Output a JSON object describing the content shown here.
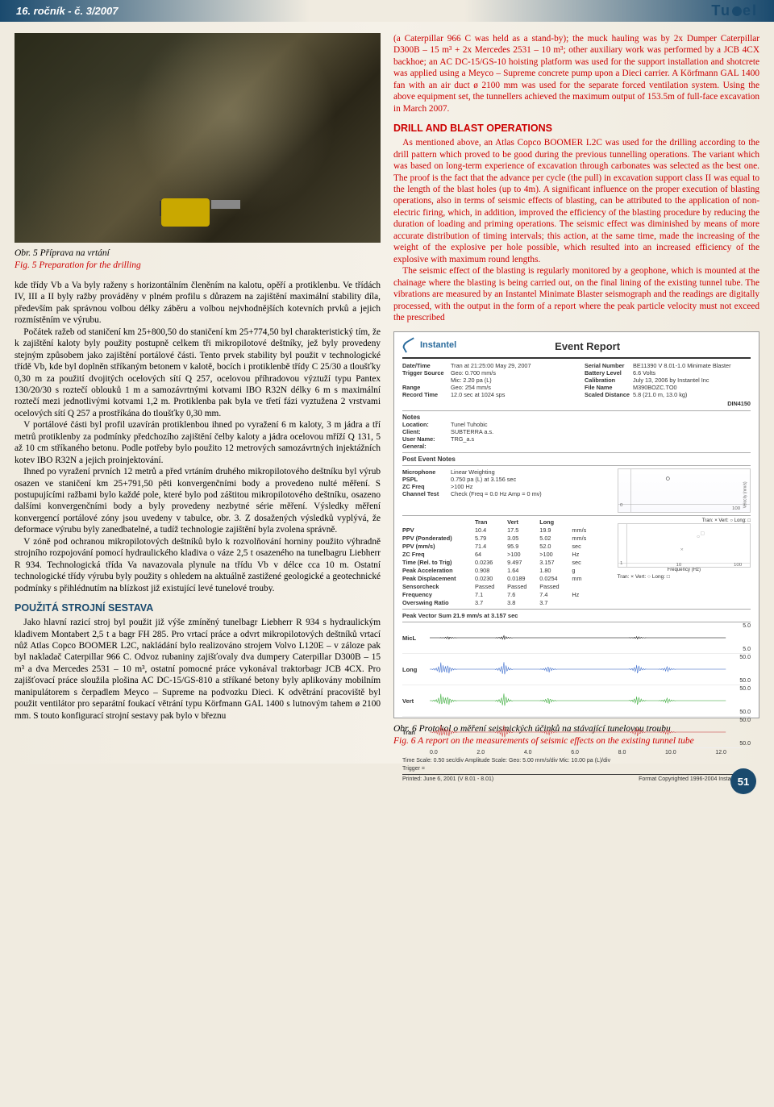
{
  "header": {
    "issue": "16. ročník - č. 3/2007",
    "journal": "Tunel"
  },
  "left": {
    "fig5": {
      "cz": "Obr. 5 Příprava na vrtání",
      "en": "Fig. 5 Preparation for the drilling"
    },
    "p1": "kde třídy Vb a Va byly raženy s horizontálním členěním na kalotu, opěří a protiklenbu. Ve třídách IV, III a II byly ražby prováděny v plném profilu s důrazem na zajištění maximální stability díla, především pak správnou volbou délky záběru a volbou nejvhodnějších kotevních prvků a jejich rozmístěním ve výrubu.",
    "p2": "Počátek ražeb od staničení km 25+800,50 do staničení km 25+774,50 byl charakteristický tím, že k zajištění kaloty byly použity postupně celkem tři mikropilotové deštníky, jež byly provedeny stejným způsobem jako zajištění portálové části. Tento prvek stability byl použit v technologické třídě Vb, kde byl doplněn stříkaným betonem v kalotě, bocích i protiklenbě třídy C 25/30 a tloušťky 0,30 m za použití dvojitých ocelových sítí Q 257, ocelovou příhradovou výztuží typu Pantex 130/20/30 s roztečí oblouků 1 m a samozávrtnými kotvami IBO R32N délky 6 m s maximální roztečí mezi jednotlivými kotvami 1,2 m. Protiklenba pak byla ve třetí fázi vyztužena 2 vrstvami ocelových sítí Q 257 a prostříkána do tloušťky 0,30 mm.",
    "p3": "V portálové části byl profil uzavírán protiklenbou ihned po vyražení 6 m kaloty, 3 m jádra a tří metrů protiklenby za podmínky předchozího zajištění čelby kaloty a jádra ocelovou mříží Q 131, 5 až 10 cm stříkaného betonu. Podle potřeby bylo použito 12 metrových samozávrtných injektážních kotev IBO R32N a jejich proinjektování.",
    "p4": "Ihned po vyražení prvních 12 metrů a před vrtáním druhého mikropilotového deštníku byl výrub osazen ve staničení km 25+791,50 pěti konvergenčními body a provedeno nulté měření. S postupujícími ražbami bylo každé pole, které bylo pod záštitou mikropilotového deštníku, osazeno dalšími konvergenčními body a byly provedeny nezbytné série měření. Výsledky měření konvergencí portálové zóny jsou uvedeny v tabulce, obr. 3. Z dosažených výsledků vyplývá, že deformace výrubu byly zanedbatelné, a tudíž technologie zajištění byla zvolena správně.",
    "p5": "V zóně pod ochranou mikropilotových deštníků bylo k rozvolňování horniny použito výhradně strojního rozpojování pomocí hydraulického kladiva o váze 2,5 t osazeného na tunelbagru Liebherr R 934. Technologická třída Va navazovala plynule na třídu Vb v délce cca 10 m. Ostatní technologické třídy výrubu byly použity s ohledem na aktuálně zastižené geologické a geotechnické podmínky s přihlédnutím na blízkost již existující levé tunelové trouby.",
    "section_equip": "POUŽITÁ STROJNÍ SESTAVA",
    "p6": "Jako hlavní razicí stroj byl použit již výše zmíněný tunelbagr Liebherr R 934 s hydraulickým kladivem Montabert 2,5 t a bagr FH 285. Pro vrtací práce a odvrt mikropilotových deštníků vrtací nůž Atlas Copco BOOMER L2C, nakládání bylo realizováno strojem Volvo L120E – v záloze pak byl nakladač Caterpillar 966 C. Odvoz rubaniny zajišťovaly dva dumpery Caterpillar D300B – 15 m³ a dva Mercedes 2531 – 10 m³, ostatní pomocné práce vykonával traktorbagr JCB 4CX. Pro zajišťovací práce sloužila plošina AC DC-15/GS-810 a stříkané betony byly aplikovány mobilním manipulátorem s čerpadlem Meyco – Supreme na podvozku Dieci. K odvětrání pracoviště byl použit ventilátor pro separátní foukací větrání typu Körfmann GAL 1400 s lutnovým tahem ø 2100 mm. S touto konfigurací strojní sestavy pak bylo v březnu"
  },
  "right": {
    "p1": "(a Caterpillar 966 C was held as a stand-by); the muck hauling was by 2x Dumper Caterpillar D300B – 15 m³ + 2x Mercedes 2531 – 10 m³; other auxiliary work was performed by a JCB 4CX backhoe; an AC DC-15/GS-10 hoisting platform was used for the support installation and shotcrete was applied using a Meyco – Supreme concrete pump upon a Dieci carrier. A Körfmann GAL 1400 fan with an air duct ø 2100 mm was used for the separate forced ventilation system. Using the above equipment set, the tunnellers achieved the maximum output of 153.5m of full-face excavation in March 2007.",
    "section_drill": "DRILL AND BLAST OPERATIONS",
    "p2": "As mentioned above, an Atlas Copco BOOMER L2C was used for the drilling according to the drill pattern which proved to be good during the previous tunnelling operations. The variant which was based on long-term experience of excavation through carbonates was selected as the best one. The proof is the fact that the advance per cycle (the pull) in excavation support class II was equal to the length of the blast holes (up to 4m). A significant influence on the proper execution of blasting operations, also in terms of seismic effects of blasting, can be attributed to the application of non-electric firing, which, in addition, improved the efficiency of the blasting procedure by reducing the duration of loading and priming operations. The seismic effect was diminished by means of more accurate distribution of timing intervals; this action, at the same time, made the increasing of the weight of the explosive per hole possible, which resulted into an increased efficiency of the explosive with maximum round lengths.",
    "p3": "The seismic effect of the blasting is regularly monitored by a geophone, which is mounted at the chainage where the blasting is being carried out, on the final lining of the existing tunnel tube. The vibrations are measured by an Instantel Minimate Blaster seismograph and the readings are digitally processed, with the output in the form of a report where the peak particle velocity must not exceed the prescribed",
    "fig6": {
      "cz": "Obr. 6 Protokol o měření seismických účinků na stávající tunelovou troubu",
      "en": "Fig. 6 A report on the measurements of seismic effects on the existing tunnel tube"
    }
  },
  "chart": {
    "brand": "Instantel",
    "title": "Event Report",
    "meta_left": [
      {
        "k": "Date/Time",
        "v": "Tran at 21:25:00 May 29, 2007"
      },
      {
        "k": "Trigger Source",
        "v": "Geo: 0.700 mm/s"
      },
      {
        "k": "",
        "v": "Mic: 2.20 pa (L)"
      },
      {
        "k": "Range",
        "v": "Geo: 254 mm/s"
      },
      {
        "k": "Record Time",
        "v": "12.0 sec at 1024 sps"
      }
    ],
    "meta_right": [
      {
        "k": "Serial Number",
        "v": "BE11390 V 8.01-1.0 Minimate Blaster"
      },
      {
        "k": "Battery Level",
        "v": "6.6 Volts"
      },
      {
        "k": "Calibration",
        "v": "July 13, 2006 by Instantel Inc"
      },
      {
        "k": "File Name",
        "v": "M390BOZC.TO0"
      },
      {
        "k": "Scaled Distance",
        "v": "5.8 (21.0 m, 13.0 kg)"
      }
    ],
    "din": "DIN4150",
    "notes": {
      "location": "Tunel Tuhobic",
      "client": "SUBTERRA a.s.",
      "user": "TRG_a.s",
      "general": ""
    },
    "post_notes": "Post Event Notes",
    "mic": {
      "psl": "0.750 pa (L) at 3.156 sec",
      "zc_freq": ">100 Hz",
      "channel_test": "Check (Freq = 0.0 Hz Amp = 0 mv)",
      "weighting": "Linear Weighting"
    },
    "ppv": {
      "head": [
        "",
        "Tran",
        "Vert",
        "Long",
        ""
      ],
      "rows": [
        {
          "k": "PPV",
          "v": [
            "10.4",
            "17.5",
            "19.9",
            "mm/s"
          ]
        },
        {
          "k": "PPV (Ponderated)",
          "v": [
            "5.79",
            "3.05",
            "5.02",
            "mm/s"
          ]
        },
        {
          "k": "PPV (mm/s)",
          "v": [
            "71.4",
            "95.9",
            "52.0",
            "sec"
          ]
        },
        {
          "k": "ZC Freq",
          "v": [
            "64",
            ">100",
            ">100",
            "Hz"
          ]
        },
        {
          "k": "Time (Rel. to Trig)",
          "v": [
            "0.0236",
            "9.497",
            "3.157",
            "sec"
          ]
        },
        {
          "k": "Peak Acceleration",
          "v": [
            "0.908",
            "1.64",
            "1.80",
            "g"
          ]
        },
        {
          "k": "Peak Displacement",
          "v": [
            "0.0230",
            "0.0189",
            "0.0254",
            "mm"
          ]
        },
        {
          "k": "Sensorcheck",
          "v": [
            "Passed",
            "Passed",
            "Passed",
            ""
          ]
        },
        {
          "k": "  Frequency",
          "v": [
            "7.1",
            "7.6",
            "7.4",
            "Hz"
          ]
        },
        {
          "k": "  Overswing Ratio",
          "v": [
            "3.7",
            "3.8",
            "3.7",
            ""
          ]
        }
      ]
    },
    "ppv_graph_legend": "Tran: ×  Vert: ○  Long: □",
    "peak_vector": "Peak Vector Sum  21.9 mm/s at 3.157 sec",
    "waves": [
      {
        "label": "MicL",
        "scale_top": "5.0",
        "scale_btm": "5.0",
        "color": "#000"
      },
      {
        "label": "Long",
        "scale_top": "50.0",
        "scale_btm": "50.0",
        "color": "#3366cc"
      },
      {
        "label": "Vert",
        "scale_top": "50.0",
        "scale_btm": "50.0",
        "color": "#33aa33"
      },
      {
        "label": "Tran",
        "scale_top": "50.0",
        "scale_btm": "50.0",
        "color": "#cc3333"
      }
    ],
    "time_ticks": [
      "0.0",
      "2.0",
      "4.0",
      "6.0",
      "8.0",
      "10.0",
      "12.0"
    ],
    "footer_left": "Time Scale: 0.50 sec/div    Amplitude Scale: Geo: 5.00 mm/s/div Mic: 10.00 pa (L)/div",
    "footer_trigger": "Trigger =",
    "footer_date": "Printed: June 6, 2001 (V 8.01 - 8.01)",
    "footer_copyright": "Format Copyrighted 1996-2004 Instantel Inc."
  },
  "page_number": "51"
}
